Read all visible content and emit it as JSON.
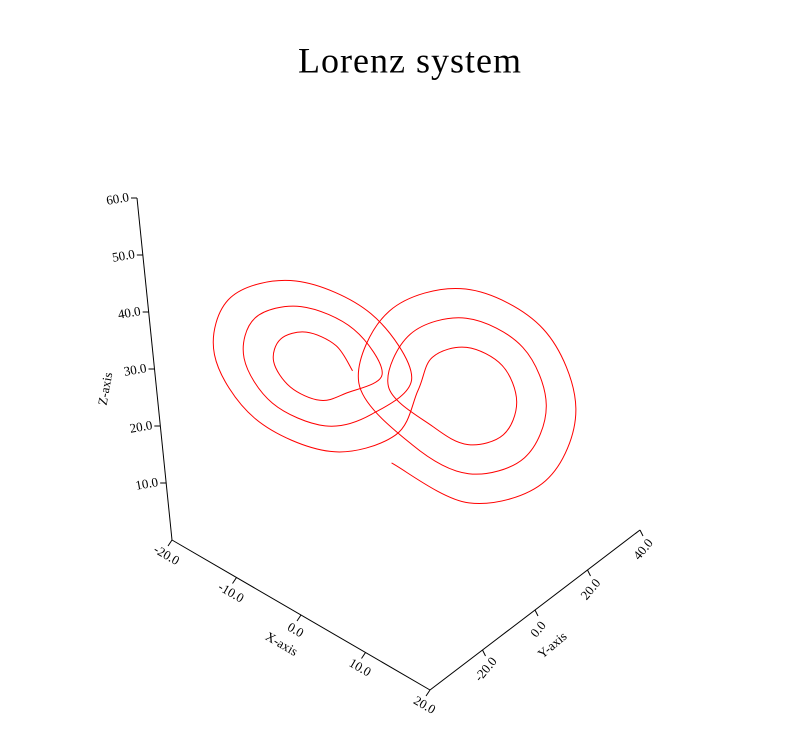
{
  "chart_data": {
    "type": "line3d",
    "title": "Lorenz system",
    "xlabel": "X-axis",
    "ylabel": "Y-axis",
    "zlabel": "Z-axis",
    "xlim": [
      -20,
      20
    ],
    "ylim": [
      -40,
      40
    ],
    "zlim": [
      0,
      60
    ],
    "xticks": [
      {
        "value": -20,
        "label": "-20.0"
      },
      {
        "value": -10,
        "label": "-10.0"
      },
      {
        "value": 0,
        "label": "0.0"
      },
      {
        "value": 10,
        "label": "10.0"
      },
      {
        "value": 20,
        "label": "20.0"
      }
    ],
    "yticks": [
      {
        "value": -20,
        "label": "-20.0"
      },
      {
        "value": 0,
        "label": "0.0"
      },
      {
        "value": 20,
        "label": "20.0"
      },
      {
        "value": 40,
        "label": "40.0"
      }
    ],
    "zticks": [
      {
        "value": 10,
        "label": "10.0"
      },
      {
        "value": 20,
        "label": "20.0"
      },
      {
        "value": 30,
        "label": "30.0"
      },
      {
        "value": 40,
        "label": "40.0"
      },
      {
        "value": 50,
        "label": "50.0"
      },
      {
        "value": 60,
        "label": "60.0"
      }
    ],
    "series": [
      {
        "color": "#ff0000",
        "x": [
          -4.5,
          -5.7,
          -8.5,
          -11.3,
          -12.5,
          -11.3,
          -8.5,
          -5.7,
          -1.5,
          -3.5,
          -8.5,
          -13.5,
          -15.5,
          -13.5,
          -8.5,
          -3.5,
          1.5,
          -1.4,
          -8.5,
          -15.6,
          -18.5,
          -15.6,
          -8.5,
          -1.4,
          3.5,
          5.0,
          8.5,
          12.1,
          13.5,
          12.1,
          8.5,
          5.0,
          0.5,
          2.8,
          8.5,
          14.2,
          16.5,
          14.2,
          8.5,
          2.8,
          -2.5,
          0.7,
          8.5,
          16.3,
          19.5,
          16.3,
          8.5,
          0.7
        ],
        "y": [
          -3.3,
          -5.7,
          -9.7,
          -13.0,
          -13.7,
          -11.3,
          -7.3,
          -4.0,
          0.6,
          -3.5,
          -10.6,
          -16.5,
          -17.6,
          -13.5,
          -6.4,
          -0.5,
          4.5,
          -1.4,
          -11.5,
          -19.9,
          -21.5,
          -15.6,
          -5.5,
          2.9,
          2.0,
          5.0,
          10.0,
          14.2,
          15.0,
          12.1,
          7.0,
          2.8,
          -1.9,
          2.8,
          10.9,
          17.6,
          18.9,
          14.2,
          6.1,
          -0.6,
          -5.8,
          0.7,
          11.8,
          21.0,
          22.8,
          16.3,
          5.2,
          -4.0
        ],
        "z": [
          27,
          31.5,
          33.4,
          31.5,
          27,
          22.5,
          20.6,
          22.5,
          27,
          35.0,
          38.2,
          35.0,
          27,
          19.0,
          15.8,
          19.0,
          27,
          38.4,
          43,
          38.4,
          27,
          15.6,
          11,
          15.6,
          27,
          32.7,
          35,
          32.7,
          27,
          21.3,
          19,
          21.3,
          27,
          36.1,
          39.8,
          36.1,
          27,
          17.9,
          14.2,
          17.9,
          27,
          39.5,
          44.6,
          39.5,
          27,
          14.5,
          9.4,
          14.5
        ]
      }
    ]
  }
}
